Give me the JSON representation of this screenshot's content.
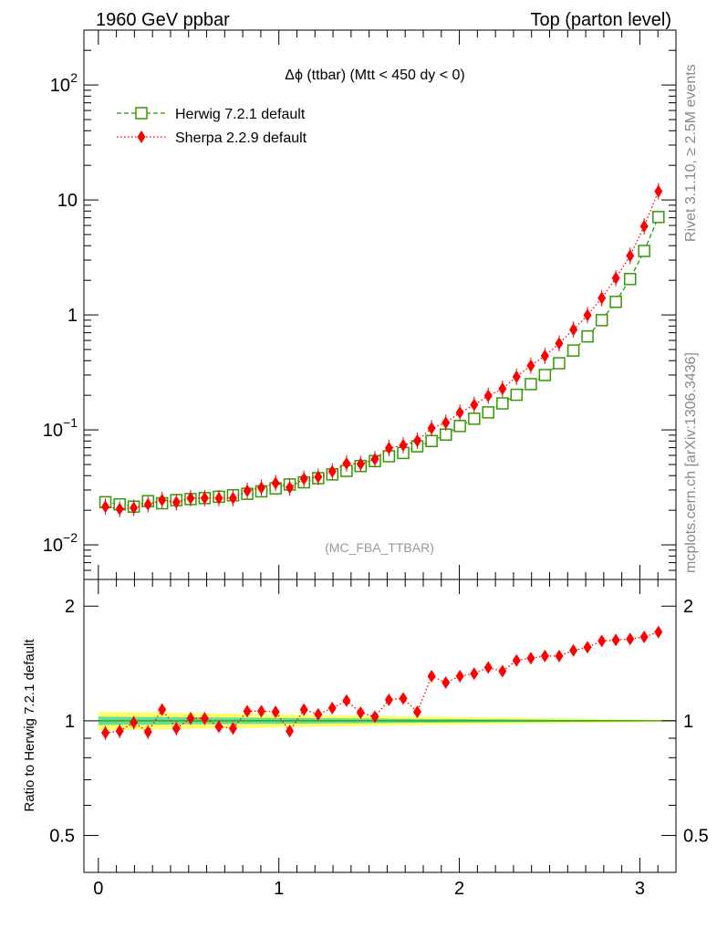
{
  "header": {
    "left": "1960 GeV ppbar",
    "right": "Top (parton level)"
  },
  "side_labels": {
    "rivet": "Rivet 3.1.10, ≥ 2.5M events",
    "mcplots": "mcplots.cern.ch [arXiv:1306.3436]"
  },
  "chart_data": [
    {
      "type": "line",
      "title": "Δϕ (ttbar) (Mtt < 450 dy < 0)",
      "watermark": "(MC_FBA_TTBAR)",
      "xlabel": "",
      "ylabel": "",
      "xlim": [
        -0.08,
        3.2
      ],
      "ylim": [
        0.005,
        300
      ],
      "yscale": "log",
      "yticks": [
        {
          "value": 0.01,
          "label": "10",
          "exp": "−2"
        },
        {
          "value": 0.1,
          "label": "10",
          "exp": "−1"
        },
        {
          "value": 1,
          "label": "1",
          "exp": ""
        },
        {
          "value": 10,
          "label": "10",
          "exp": ""
        },
        {
          "value": 100,
          "label": "10",
          "exp": "2"
        }
      ],
      "legend_position": "top-left",
      "x": [
        0.039,
        0.118,
        0.196,
        0.275,
        0.353,
        0.432,
        0.511,
        0.589,
        0.668,
        0.746,
        0.825,
        0.903,
        0.982,
        1.06,
        1.139,
        1.218,
        1.296,
        1.375,
        1.453,
        1.532,
        1.61,
        1.689,
        1.767,
        1.846,
        1.925,
        2.003,
        2.082,
        2.16,
        2.239,
        2.317,
        2.396,
        2.474,
        2.553,
        2.632,
        2.71,
        2.789,
        2.867,
        2.946,
        3.024,
        3.103
      ],
      "series": [
        {
          "name": "Herwig 7.2.1 default",
          "color": "#339900",
          "marker": "open-square",
          "line": "dashed",
          "values": [
            0.0235,
            0.0225,
            0.0215,
            0.024,
            0.023,
            0.0245,
            0.025,
            0.0255,
            0.0262,
            0.027,
            0.0278,
            0.0292,
            0.031,
            0.0335,
            0.035,
            0.038,
            0.041,
            0.044,
            0.0485,
            0.0535,
            0.059,
            0.063,
            0.072,
            0.08,
            0.091,
            0.108,
            0.125,
            0.142,
            0.17,
            0.202,
            0.25,
            0.3,
            0.38,
            0.49,
            0.65,
            0.9,
            1.3,
            2.05,
            3.6,
            7.1
          ]
        },
        {
          "name": "Sherpa 2.2.9 default",
          "color": "#ff0000",
          "marker": "filled-diamond",
          "line": "dotted",
          "values": [
            0.0215,
            0.0205,
            0.021,
            0.0225,
            0.0245,
            0.0235,
            0.0255,
            0.0255,
            0.0255,
            0.0255,
            0.0295,
            0.0314,
            0.0345,
            0.0315,
            0.0375,
            0.039,
            0.0435,
            0.051,
            0.0505,
            0.0555,
            0.0695,
            0.0735,
            0.0805,
            0.1035,
            0.1155,
            0.1415,
            0.165,
            0.198,
            0.228,
            0.29,
            0.362,
            0.44,
            0.565,
            0.745,
            0.995,
            1.4,
            2.09,
            3.27,
            5.9,
            11.9
          ]
        }
      ]
    },
    {
      "type": "line",
      "title": "",
      "xlabel": "",
      "ylabel": "Ratio to Herwig 7.2.1 default",
      "xlim": [
        -0.08,
        3.2
      ],
      "ylim": [
        0.4,
        2.35
      ],
      "yscale": "log",
      "yticks": [
        0.5,
        1,
        2
      ],
      "xticks": [
        0,
        1,
        2,
        3
      ],
      "reference_band_color_inner": "#66dd99",
      "reference_band_color_outer": "#ffff66",
      "x": [
        0.039,
        0.118,
        0.196,
        0.275,
        0.353,
        0.432,
        0.511,
        0.589,
        0.668,
        0.746,
        0.825,
        0.903,
        0.982,
        1.06,
        1.139,
        1.218,
        1.296,
        1.375,
        1.453,
        1.532,
        1.61,
        1.689,
        1.767,
        1.846,
        1.925,
        2.003,
        2.082,
        2.16,
        2.239,
        2.317,
        2.396,
        2.474,
        2.553,
        2.632,
        2.71,
        2.789,
        2.867,
        2.946,
        3.024,
        3.103
      ],
      "series": [
        {
          "name": "Sherpa 2.2.9 default",
          "color": "#ff0000",
          "values": [
            0.93,
            0.94,
            0.99,
            0.935,
            1.07,
            0.955,
            1.015,
            1.015,
            0.965,
            0.955,
            1.06,
            1.06,
            1.055,
            0.94,
            1.07,
            1.04,
            1.08,
            1.13,
            1.05,
            1.025,
            1.135,
            1.145,
            1.055,
            1.31,
            1.26,
            1.31,
            1.33,
            1.38,
            1.35,
            1.44,
            1.46,
            1.48,
            1.48,
            1.53,
            1.56,
            1.62,
            1.63,
            1.64,
            1.66,
            1.71
          ],
          "errors": [
            0.04,
            0.04,
            0.04,
            0.04,
            0.04,
            0.04,
            0.04,
            0.04,
            0.035,
            0.035,
            0.035,
            0.035,
            0.035,
            0.035,
            0.03,
            0.03,
            0.03,
            0.03,
            0.03,
            0.025,
            0.025,
            0.025,
            0.025,
            0.025,
            0.025,
            0.02,
            0.02,
            0.02,
            0.02,
            0.02,
            0.02,
            0.02,
            0.02,
            0.02,
            0.02,
            0.02,
            0.02,
            0.02,
            0.02,
            0.02
          ]
        }
      ]
    }
  ]
}
